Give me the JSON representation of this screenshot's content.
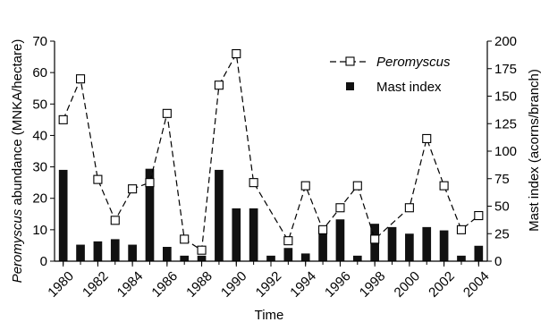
{
  "chart_data": {
    "type": "bar+line",
    "xlabel": "Time",
    "ylabel_left_italic": "Peromyscus",
    "ylabel_left_rest": " abundance (MNKA/hectare)",
    "ylabel_right": "Mast index (acorns/branch)",
    "xlim": [
      1979.5,
      2004.5
    ],
    "ylim_left": [
      0,
      70
    ],
    "ylim_right": [
      0,
      200
    ],
    "x_ticks": [
      1980,
      1982,
      1984,
      1986,
      1988,
      1990,
      1992,
      1994,
      1996,
      1998,
      2000,
      2002,
      2004
    ],
    "y_left_ticks": [
      0,
      10,
      20,
      30,
      40,
      50,
      60,
      70
    ],
    "y_right_ticks": [
      0,
      25,
      50,
      75,
      100,
      125,
      150,
      175,
      200
    ],
    "legend_position": "top-right",
    "series": [
      {
        "name": "Peromyscus",
        "name_italic": true,
        "kind": "line",
        "axis": "left",
        "style": "dashed line with open square markers",
        "x": [
          1980,
          1981,
          1982,
          1983,
          1984,
          1985,
          1986,
          1987,
          1988,
          1989,
          1990,
          1991,
          1993,
          1994,
          1995,
          1996,
          1997,
          1998,
          2000,
          2001,
          2002,
          2003,
          2004
        ],
        "y": [
          45,
          58,
          26,
          13,
          23,
          25,
          47,
          7,
          3.5,
          56,
          66,
          25,
          6.5,
          24,
          10,
          17,
          24,
          7,
          17,
          39,
          24,
          10,
          14.5
        ]
      },
      {
        "name": "Mast index",
        "kind": "bar",
        "axis": "right",
        "style": "black bars",
        "x": [
          1980,
          1981,
          1982,
          1983,
          1984,
          1985,
          1986,
          1987,
          1988,
          1989,
          1990,
          1991,
          1992,
          1993,
          1994,
          1995,
          1996,
          1997,
          1998,
          1999,
          2000,
          2001,
          2002,
          2003,
          2004
        ],
        "y": [
          83,
          15,
          18,
          20,
          15,
          84,
          13,
          5,
          5,
          83,
          48,
          48,
          5,
          12,
          7,
          28,
          38,
          5,
          34,
          31,
          25,
          31,
          28,
          5,
          14
        ]
      }
    ]
  },
  "colors": {
    "bars": "#111111",
    "line": "#000000",
    "marker_fill": "#ffffff",
    "background": "#ffffff"
  }
}
